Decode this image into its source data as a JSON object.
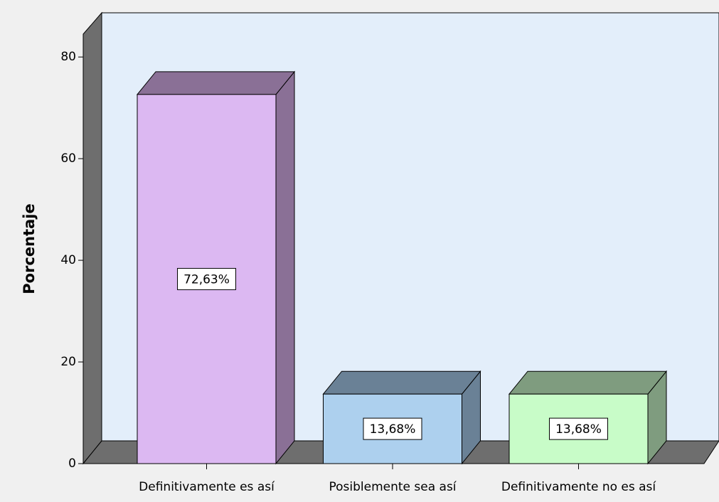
{
  "chart_data": {
    "type": "bar3d",
    "y_label": "Porcentaje",
    "categories": [
      "Definitivamente es así",
      "Posiblemente sea así",
      "Definitivamente no es así"
    ],
    "values": [
      72.63,
      13.68,
      13.68
    ],
    "value_labels": [
      "72,63%",
      "13,68%",
      "13,68%"
    ],
    "colors": [
      "#dcb8f2",
      "#add0ee",
      "#c8fcc8"
    ],
    "side_colors": [
      "#8a7096",
      "#6a8196",
      "#7f9c7f"
    ],
    "ylim": [
      0,
      84.5
    ],
    "yticks": [
      0,
      20,
      40,
      60,
      80
    ]
  }
}
